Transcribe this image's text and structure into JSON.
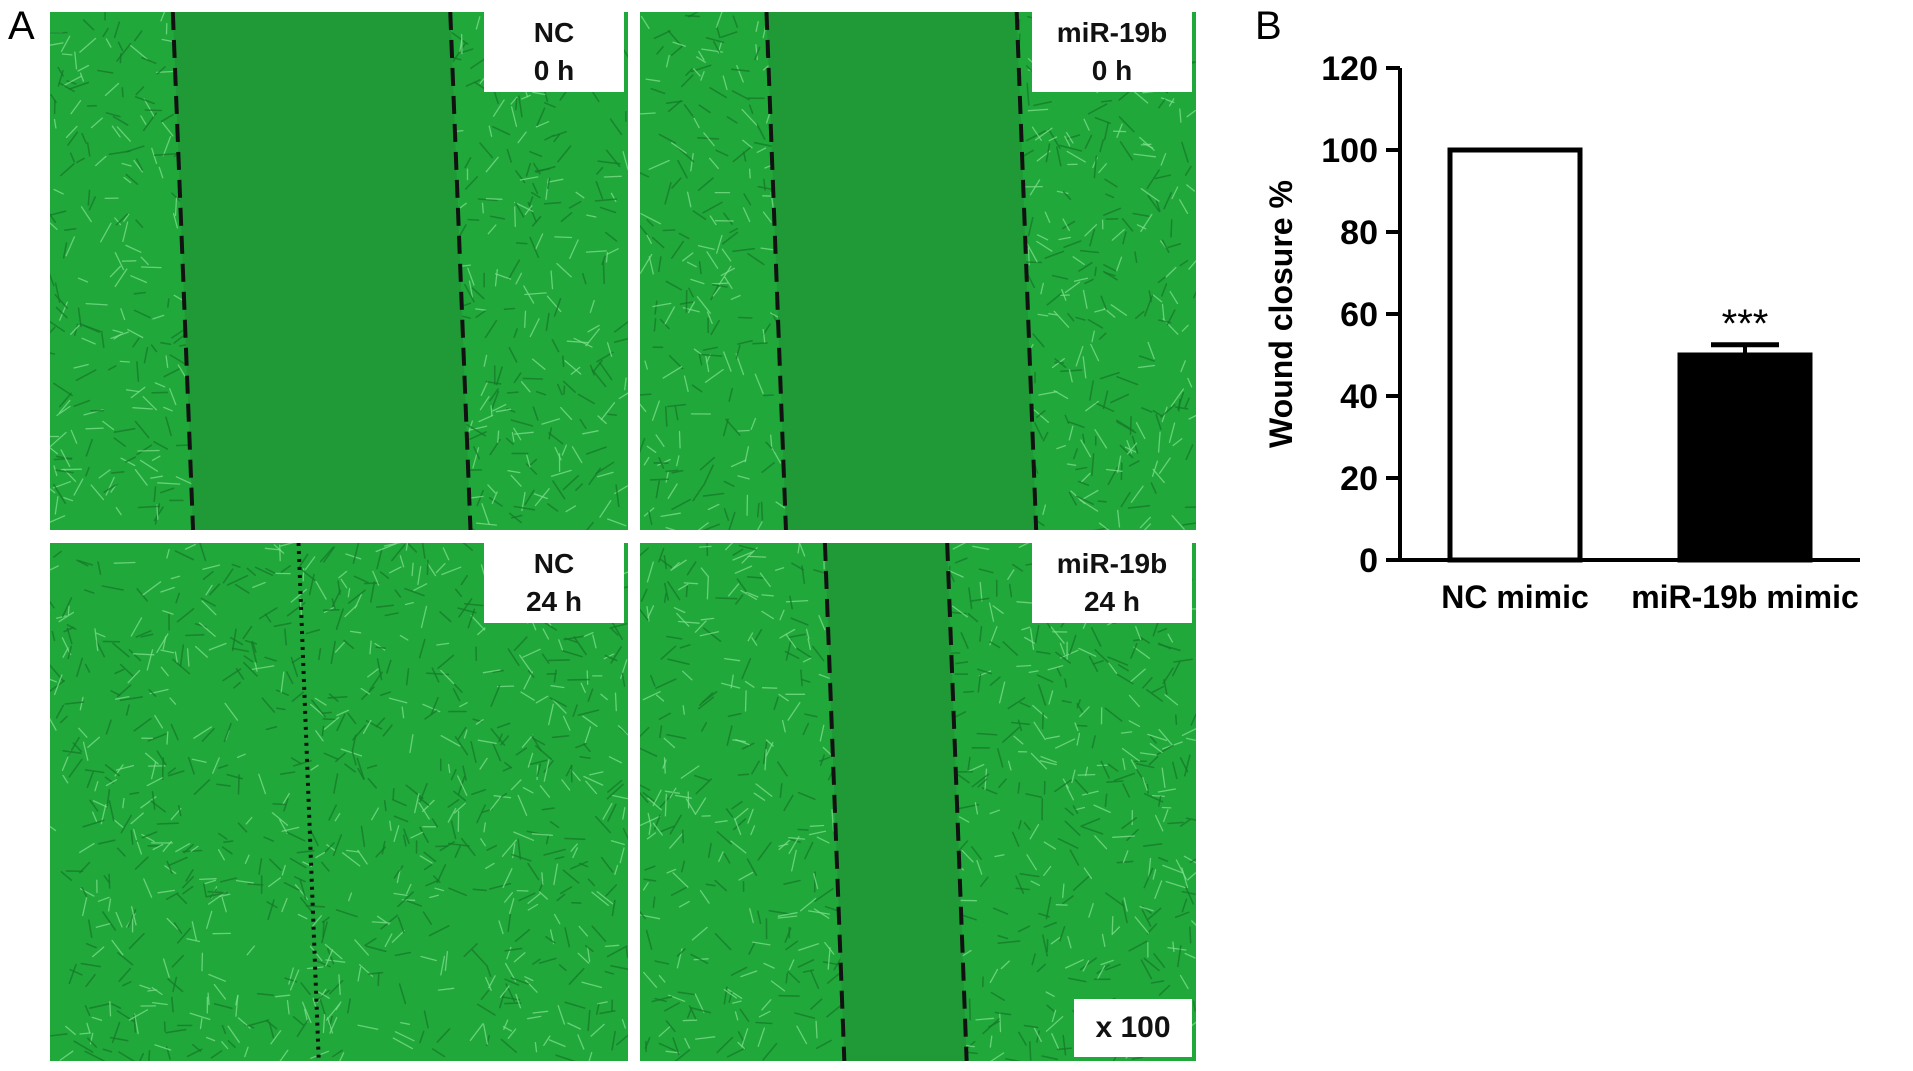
{
  "panel_a": {
    "letter": "A",
    "images": [
      {
        "line1": "NC",
        "line2": "0 h",
        "gap": 0.48,
        "edge": "dashed"
      },
      {
        "line1": "miR-19b",
        "line2": "0 h",
        "gap": 0.45,
        "edge": "dashed"
      },
      {
        "line1": "NC",
        "line2": "24 h",
        "gap": 0.0,
        "edge": "dotted"
      },
      {
        "line1": "miR-19b",
        "line2": "24 h",
        "gap": 0.22,
        "edge": "dashed"
      }
    ],
    "magnification": "x 100",
    "colors": {
      "cells": "#21a83b",
      "gap": "#1f9a37",
      "edge_line": "#111111"
    }
  },
  "panel_b": {
    "letter": "B"
  },
  "chart_data": {
    "type": "bar",
    "categories": [
      "NC mimic",
      "miR-19b mimic"
    ],
    "values": [
      100,
      50
    ],
    "error": [
      0,
      2.5
    ],
    "bar_fill": [
      "#ffffff",
      "#000000"
    ],
    "annotations": [
      "",
      "***"
    ],
    "title": "",
    "xlabel": "",
    "ylabel": "Wound closure %",
    "ylim": [
      0,
      120
    ],
    "yticks": [
      "0",
      "20",
      "40",
      "60",
      "80",
      "100",
      "120"
    ],
    "grid": false
  }
}
